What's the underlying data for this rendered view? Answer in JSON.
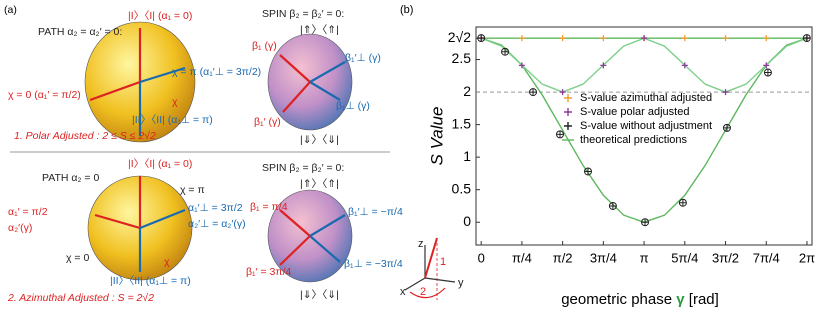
{
  "panel_a": {
    "label": "(a)",
    "texts": [
      "PATH α₂ = α₂′ = 0:",
      "|I〉〈I| (α₁ = 0)",
      "χ = 0 (α₁′ = π/2)",
      "χ = π (α₁′⊥ = 3π/2)",
      "χ",
      "|II〉〈II| (α₁⊥ = π)",
      "SPIN β₂ = β₂′ = 0:",
      "|⇑〉〈⇑|",
      "β₁ (γ)",
      "β₁′⊥ (γ)",
      "β₁⊥ (γ)",
      "β₁′ (γ)",
      "|⇓〉〈⇓|",
      "1. Polar Adjusted : 2 ≤ S ≤ 2√2",
      "PATH α₂ = 0",
      "|I〉〈I| (α₁ = 0)",
      "χ = π",
      "α₁′ = π/2",
      "α₂′(γ)",
      "α₁′⊥ = 3π/2",
      "α₂′⊥ = α₂′(γ)",
      "χ = 0",
      "χ",
      "|II〉〈II| (α₁⊥ = π)",
      "SPIN β₂ = β₂′ = 0:",
      "|⇑〉〈⇑|",
      "β₁ = π/4",
      "β₁′⊥ = −π/4",
      "β₁⊥ = −3π/4",
      "β₁′ = 3π/4",
      "|⇓〉〈⇓|",
      "2. Azimuthal Adjusted : S = 2√2"
    ]
  },
  "panel_b": {
    "label": "(b)",
    "axes_diagram": [
      "z",
      "x",
      "y",
      "1",
      "2"
    ]
  },
  "chart_data": {
    "type": "scatter",
    "y_label": "S Value",
    "x_label": [
      "geometric phase ",
      "γ",
      " [rad]"
    ],
    "xlim": [
      -0.1,
      6.38
    ],
    "ylim": [
      -0.35,
      3.0
    ],
    "xticks": [
      {
        "value": 0,
        "label": "0"
      },
      {
        "value": 0.7854,
        "label": "π/4"
      },
      {
        "value": 1.5708,
        "label": "π/2"
      },
      {
        "value": 2.3562,
        "label": "3π/4"
      },
      {
        "value": 3.1416,
        "label": "π"
      },
      {
        "value": 3.927,
        "label": "5π/4"
      },
      {
        "value": 4.7124,
        "label": "3π/2"
      },
      {
        "value": 5.4978,
        "label": "7π/4"
      },
      {
        "value": 6.2832,
        "label": "2π"
      }
    ],
    "yticks": [
      0,
      0.5,
      1,
      1.5,
      2,
      2.5,
      {
        "value": 2.828,
        "label": "2√2"
      }
    ],
    "reference_line": 2,
    "series": [
      {
        "name": "S-value  azimuthal adjusted",
        "color": "#f0a030",
        "mode": "markers",
        "x": [
          0,
          0.7854,
          1.5708,
          2.3562,
          3.1416,
          3.927,
          4.7124,
          5.4978,
          6.2832
        ],
        "values": [
          2.83,
          2.83,
          2.83,
          2.83,
          2.83,
          2.83,
          2.83,
          2.83,
          2.83
        ]
      },
      {
        "name": "S-value polar adjusted",
        "color": "#8a3a9a",
        "mode": "markers",
        "x": [
          0,
          0.7854,
          1.5708,
          2.3562,
          3.1416,
          3.927,
          4.7124,
          5.4978,
          6.2832
        ],
        "values": [
          2.83,
          2.41,
          2.0,
          2.41,
          2.83,
          2.41,
          2.0,
          2.41,
          2.83
        ]
      },
      {
        "name": "S-value without adjustment",
        "color": "#222222",
        "mode": "circles",
        "x": [
          0,
          0.46,
          1.0,
          1.52,
          2.06,
          2.54,
          3.16,
          3.89,
          4.74,
          5.53,
          6.28
        ],
        "values": [
          2.83,
          2.62,
          2.0,
          1.35,
          0.78,
          0.25,
          0.0,
          0.3,
          1.45,
          2.3,
          2.83
        ]
      },
      {
        "name": "theoretical predictions",
        "color": "#5cb85c",
        "mode": "lines",
        "x": [
          0,
          0.3927,
          0.7854,
          1.1781,
          1.5708,
          1.9635,
          2.3562,
          2.7489,
          3.1416,
          3.5343,
          3.927,
          4.3197,
          4.7124,
          5.1051,
          5.4978,
          5.8905,
          6.2832
        ],
        "values": [
          2.828,
          2.721,
          2.414,
          1.955,
          1.414,
          0.873,
          0.414,
          0.108,
          0,
          0.108,
          0.414,
          0.873,
          1.414,
          1.955,
          2.414,
          2.721,
          2.828
        ]
      },
      {
        "color": "#7ccf8a",
        "mode": "lines",
        "x": [
          0,
          0.3927,
          0.7854,
          1.1781,
          1.5708,
          1.9635,
          2.3562,
          2.7489,
          3.1416,
          3.5343,
          3.927,
          4.3197,
          4.7124,
          5.1051,
          5.4978,
          5.8905,
          6.2832
        ],
        "values": [
          2.828,
          2.707,
          2.414,
          2.121,
          2.0,
          2.121,
          2.414,
          2.707,
          2.828,
          2.707,
          2.414,
          2.121,
          2.0,
          2.121,
          2.414,
          2.707,
          2.828
        ]
      },
      {
        "color": "#5cb85c",
        "mode": "lines",
        "x": [
          0,
          6.2832
        ],
        "values": [
          2.828,
          2.828
        ]
      }
    ]
  }
}
